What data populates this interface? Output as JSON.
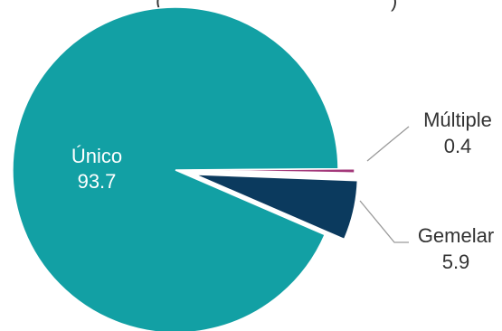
{
  "chart_data": {
    "type": "pie",
    "title": "(",
    "title_tail": ")",
    "slices": [
      {
        "label": "Único",
        "value": 93.7,
        "value_text": "93.7",
        "color": "#12a0a4"
      },
      {
        "label": "Gemelar",
        "value": 5.9,
        "value_text": "5.9",
        "color": "#0b3a5e"
      },
      {
        "label": "Múltiple",
        "value": 0.4,
        "value_text": "0.4",
        "color": "#a3387a"
      }
    ],
    "label_color_inside": "#ffffff",
    "label_color_outside": "#333333",
    "leader_color": "#9a9a9a"
  }
}
